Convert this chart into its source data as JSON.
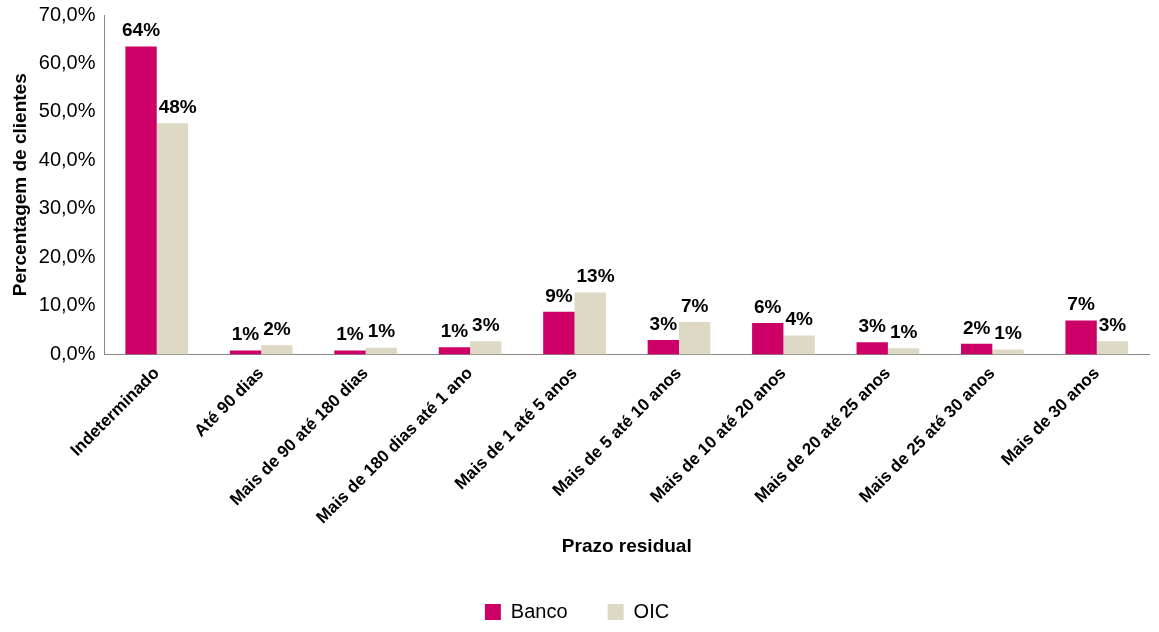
{
  "chart_data": {
    "type": "bar",
    "xlabel": "Prazo residual",
    "ylabel": "Percentagem de clientes",
    "categories": [
      "Indeterminado",
      "Até 90 dias",
      "Mais de 90 até 180 dias",
      "Mais de 180 dias até 1 ano",
      "Mais de 1 até 5 anos",
      "Mais de 5 até 10 anos",
      "Mais de 10 até 20 anos",
      "Mais de 20 até 25 anos",
      "Mais de 25 até 30 anos",
      "Mais de 30 anos"
    ],
    "series": [
      {
        "name": "Banco",
        "color": "#cc0066",
        "values": [
          63.5,
          0.8,
          0.8,
          1.5,
          8.8,
          3.0,
          6.5,
          2.5,
          2.2,
          7.0
        ],
        "value_labels": [
          "64%",
          "1%",
          "1%",
          "1%",
          "9%",
          "3%",
          "6%",
          "3%",
          "2%",
          "7%"
        ]
      },
      {
        "name": "OIC",
        "color": "#ddd9c4",
        "values": [
          47.7,
          1.9,
          1.4,
          2.7,
          12.8,
          6.7,
          3.9,
          1.3,
          1.0,
          2.7
        ],
        "value_labels": [
          "48%",
          "2%",
          "1%",
          "3%",
          "13%",
          "7%",
          "4%",
          "1%",
          "1%",
          "3%"
        ]
      }
    ],
    "ylim": [
      0,
      70
    ],
    "yticks": [
      {
        "value": 0,
        "label": "0,0%"
      },
      {
        "value": 10,
        "label": "10,0%"
      },
      {
        "value": 20,
        "label": "20,0%"
      },
      {
        "value": 30,
        "label": "30,0%"
      },
      {
        "value": 40,
        "label": "40,0%"
      },
      {
        "value": 50,
        "label": "50,0%"
      },
      {
        "value": 60,
        "label": "60,0%"
      },
      {
        "value": 70,
        "label": "70,0%"
      }
    ],
    "grid": false,
    "legend": "bottom"
  }
}
